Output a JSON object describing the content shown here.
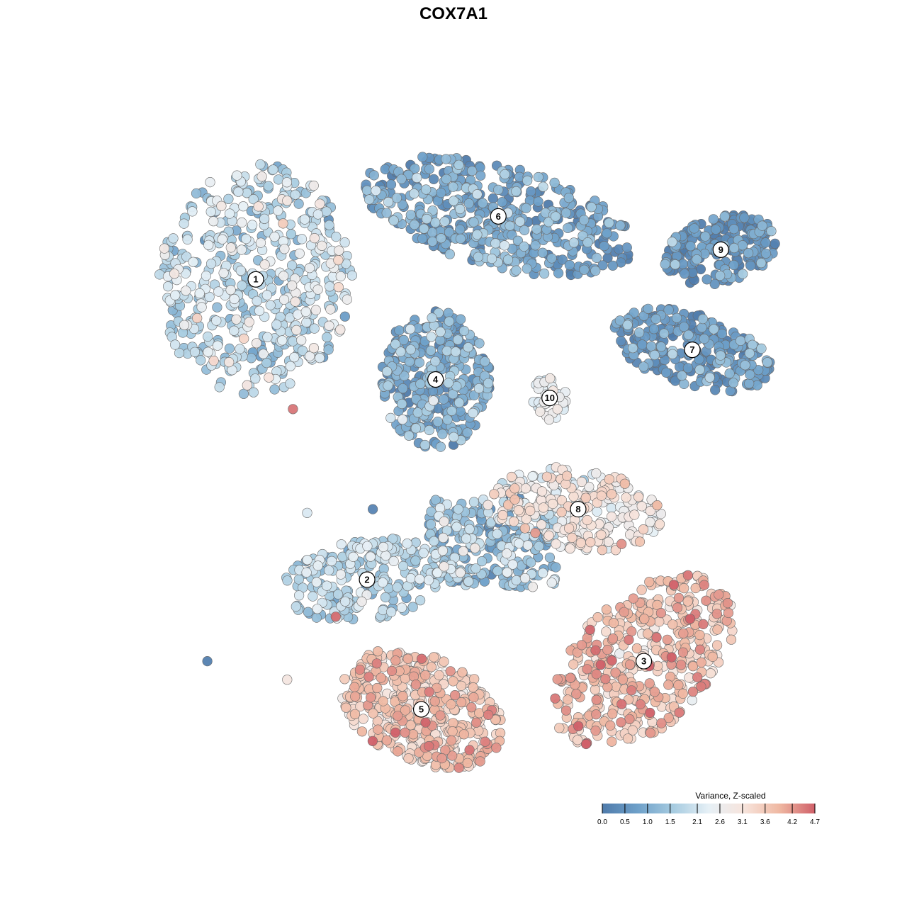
{
  "chart_data": {
    "type": "scatter",
    "title": "COX7A1",
    "xlabel": "",
    "ylabel": "",
    "grid": false,
    "axes_visible": false,
    "legend": {
      "title": "Variance, Z-scaled",
      "placement": "bottom-right",
      "range": [
        0.0,
        4.7
      ],
      "ticks": [
        0.0,
        0.5,
        1.0,
        1.5,
        2.1,
        2.6,
        3.1,
        3.6,
        4.2,
        4.7
      ],
      "tick_labels": [
        "0.0",
        "0.5",
        "1.0",
        "1.5",
        "2.1",
        "2.6",
        "3.1",
        "3.6",
        "4.2",
        "4.7"
      ],
      "colors": [
        "#4f7bab",
        "#6ea0c9",
        "#a6cbe0",
        "#e6f0f6",
        "#f7e4dc",
        "#efb8a2",
        "#d06069"
      ]
    },
    "clusters": [
      {
        "label": "1",
        "x": -7.3,
        "y": 5.5,
        "level": 1.9
      },
      {
        "label": "2",
        "x": -3.4,
        "y": -2.6,
        "level": 1.7
      },
      {
        "label": "3",
        "x": 6.3,
        "y": -4.8,
        "level": 3.7
      },
      {
        "label": "4",
        "x": -1.0,
        "y": 2.8,
        "level": 0.9
      },
      {
        "label": "5",
        "x": -1.5,
        "y": -6.1,
        "level": 3.5
      },
      {
        "label": "6",
        "x": 1.2,
        "y": 7.2,
        "level": 0.8
      },
      {
        "label": "7",
        "x": 8.0,
        "y": 3.6,
        "level": 0.6
      },
      {
        "label": "8",
        "x": 4.0,
        "y": -0.7,
        "level": 2.9
      },
      {
        "label": "9",
        "x": 9.0,
        "y": 6.3,
        "level": 0.4
      },
      {
        "label": "10",
        "x": 3.0,
        "y": 2.3,
        "level": 2.4
      }
    ],
    "outliers": [
      {
        "x": -6.0,
        "y": 2.0,
        "level": 4.5
      },
      {
        "x": -5.5,
        "y": -0.8,
        "level": 2.2
      },
      {
        "x": -3.2,
        "y": -0.7,
        "level": 0.2
      },
      {
        "x": -4.5,
        "y": -3.6,
        "level": 4.6
      },
      {
        "x": -9.0,
        "y": -4.8,
        "level": 0.1
      },
      {
        "x": -6.2,
        "y": -5.3,
        "level": 3.0
      },
      {
        "x": 6.0,
        "y": -1.5,
        "level": 1.2
      }
    ]
  }
}
